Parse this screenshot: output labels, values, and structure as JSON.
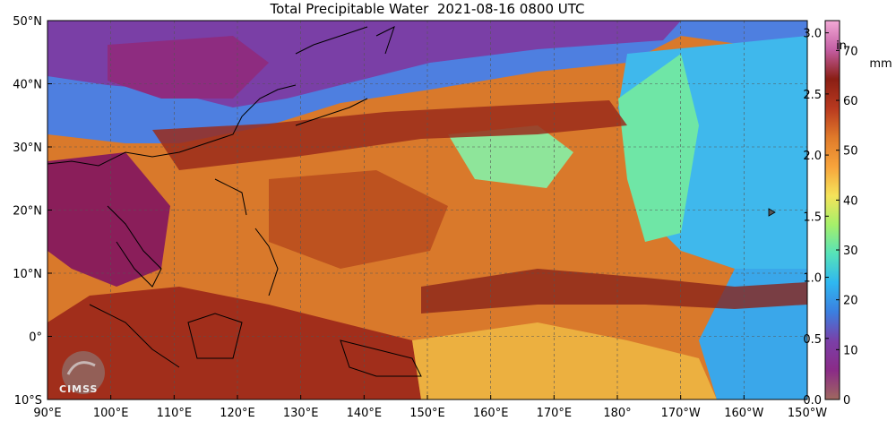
{
  "title": "Total Precipitable Water  2021-08-16 0800 UTC",
  "map": {
    "lon_ticks": [
      "90°E",
      "100°E",
      "110°E",
      "120°E",
      "130°E",
      "140°E",
      "150°E",
      "160°E",
      "170°E",
      "180°",
      "170°W",
      "160°W",
      "150°W"
    ],
    "lat_ticks": [
      "50°N",
      "40°N",
      "30°N",
      "20°N",
      "10°N",
      "0°",
      "10°S"
    ],
    "lon_range": [
      90,
      210
    ],
    "lat_range": [
      -10,
      50
    ],
    "grid": true
  },
  "colorbar": {
    "in_unit": "in",
    "mm_unit": "mm",
    "in_ticks": [
      "3.0",
      "2.5",
      "2.0",
      "1.5",
      "1.0",
      "0.5",
      "0.0"
    ],
    "mm_ticks": [
      "70",
      "60",
      "50",
      "40",
      "30",
      "20",
      "10",
      "0"
    ],
    "in_range": [
      0,
      3.1
    ],
    "mm_range": [
      0,
      76
    ],
    "colors": [
      "#a0685f",
      "#8a2b87",
      "#7b3fa8",
      "#3b7fe0",
      "#2fb7f0",
      "#56e3b9",
      "#a6f06a",
      "#f5e35a",
      "#f7a33b",
      "#e07a2a",
      "#b8391f",
      "#8a1e14",
      "#c45ea3",
      "#f2a9d6"
    ]
  },
  "logo": {
    "text": "CIMSS"
  }
}
